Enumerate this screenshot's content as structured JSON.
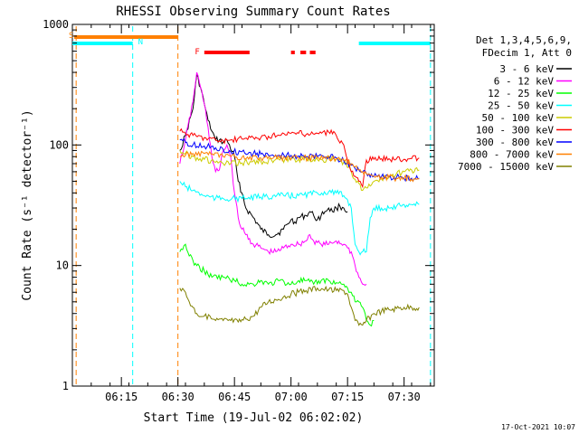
{
  "chart_data": {
    "type": "line",
    "title": "RHESSI Observing Summary Count Rates",
    "xlabel": "Start Time (19-Jul-02 06:02:02)",
    "ylabel": "Count Rate (s⁻¹ detector⁻¹)",
    "yscale": "log",
    "ylim": [
      1,
      1000
    ],
    "xlim_minutes": [
      0,
      96
    ],
    "y_ticks": [
      "1",
      "10",
      "100",
      "1000"
    ],
    "x_ticks": [
      {
        "minute": 13,
        "label": "06:15"
      },
      {
        "minute": 28,
        "label": "06:30"
      },
      {
        "minute": 43,
        "label": "06:45"
      },
      {
        "minute": 58,
        "label": "07:00"
      },
      {
        "minute": 73,
        "label": "07:15"
      },
      {
        "minute": 88,
        "label": "07:30"
      }
    ],
    "legend_header": [
      "Det 1,3,4,5,6,9,",
      "FDecim 1, Att 0"
    ],
    "legend_position": "right",
    "footer_date": "17-Oct-2021 10:07",
    "flags": [
      {
        "label": "S",
        "color": "#ff8000"
      },
      {
        "label": "N",
        "color": "#00ffff"
      },
      {
        "label": "F",
        "color": "#ff0000"
      }
    ],
    "flag_intervals": {
      "saa": [
        [
          0.5,
          28
        ]
      ],
      "night": [
        [
          0,
          16
        ],
        [
          76,
          95
        ]
      ],
      "flare": [
        [
          35,
          47
        ],
        [
          58,
          59
        ],
        [
          60.5,
          62
        ],
        [
          63,
          64.5
        ]
      ]
    },
    "vlines": [
      {
        "minute": 1,
        "color": "#ff8000"
      },
      {
        "minute": 16,
        "color": "#00ffff"
      },
      {
        "minute": 28,
        "color": "#ff8000"
      },
      {
        "minute": 95,
        "color": "#00ffff"
      }
    ],
    "series": [
      {
        "name": "3 - 6 keV",
        "color": "#000000",
        "points": [
          [
            28.5,
            90
          ],
          [
            30,
            120
          ],
          [
            32,
            200
          ],
          [
            33,
            380
          ],
          [
            34,
            300
          ],
          [
            35,
            220
          ],
          [
            36,
            160
          ],
          [
            37,
            130
          ],
          [
            38,
            110
          ],
          [
            39,
            110
          ],
          [
            40,
            105
          ],
          [
            41,
            110
          ],
          [
            43,
            80
          ],
          [
            44,
            50
          ],
          [
            45,
            40
          ],
          [
            46,
            30
          ],
          [
            48,
            25
          ],
          [
            50,
            20
          ],
          [
            52,
            18
          ],
          [
            54,
            18
          ],
          [
            56,
            20
          ],
          [
            57,
            22
          ],
          [
            58,
            24
          ],
          [
            59,
            23
          ],
          [
            60,
            25
          ],
          [
            62,
            26
          ],
          [
            63,
            28
          ],
          [
            64,
            26
          ],
          [
            65,
            24
          ],
          [
            66,
            26
          ],
          [
            67,
            28
          ],
          [
            68,
            30
          ],
          [
            69,
            28
          ],
          [
            70,
            30
          ],
          [
            71,
            31
          ],
          [
            72,
            30
          ],
          [
            73,
            28
          ]
        ]
      },
      {
        "name": "6 - 12 keV",
        "color": "#ff00ff",
        "points": [
          [
            28.5,
            70
          ],
          [
            30,
            110
          ],
          [
            32,
            230
          ],
          [
            33,
            400
          ],
          [
            34,
            300
          ],
          [
            35,
            220
          ],
          [
            36,
            140
          ],
          [
            37,
            80
          ],
          [
            38,
            60
          ],
          [
            39,
            62
          ],
          [
            40,
            90
          ],
          [
            41,
            100
          ],
          [
            42,
            80
          ],
          [
            43,
            40
          ],
          [
            44,
            25
          ],
          [
            45,
            20
          ],
          [
            46,
            18
          ],
          [
            48,
            15
          ],
          [
            50,
            14
          ],
          [
            52,
            13
          ],
          [
            54,
            13
          ],
          [
            56,
            14
          ],
          [
            58,
            15
          ],
          [
            60,
            15
          ],
          [
            62,
            16
          ],
          [
            63,
            18
          ],
          [
            64,
            16
          ],
          [
            66,
            15
          ],
          [
            68,
            15
          ],
          [
            70,
            16
          ],
          [
            72,
            15
          ],
          [
            73,
            14
          ],
          [
            74,
            13
          ],
          [
            75,
            10
          ],
          [
            76,
            8
          ],
          [
            77,
            7
          ],
          [
            78,
            7
          ]
        ]
      },
      {
        "name": "12 - 25 keV",
        "color": "#00ff00",
        "points": [
          [
            28.5,
            13
          ],
          [
            30,
            15
          ],
          [
            31,
            12
          ],
          [
            32,
            11
          ],
          [
            33,
            10
          ],
          [
            35,
            9
          ],
          [
            37,
            8
          ],
          [
            40,
            8
          ],
          [
            43,
            7.5
          ],
          [
            45,
            7
          ],
          [
            48,
            7
          ],
          [
            50,
            7.5
          ],
          [
            52,
            7
          ],
          [
            55,
            7.5
          ],
          [
            58,
            7
          ],
          [
            60,
            7.5
          ],
          [
            62,
            7.5
          ],
          [
            64,
            7
          ],
          [
            66,
            7.5
          ],
          [
            68,
            7.5
          ],
          [
            70,
            7.2
          ],
          [
            72,
            7
          ],
          [
            73,
            6.5
          ],
          [
            74,
            6
          ],
          [
            75,
            5
          ],
          [
            76,
            5
          ],
          [
            77,
            4.5
          ],
          [
            78,
            3.5
          ],
          [
            79,
            3.2
          ],
          [
            80,
            3.5
          ]
        ]
      },
      {
        "name": "25 - 50 keV",
        "color": "#00ffff",
        "points": [
          [
            28.5,
            50
          ],
          [
            30,
            45
          ],
          [
            32,
            42
          ],
          [
            35,
            38
          ],
          [
            38,
            36
          ],
          [
            40,
            36
          ],
          [
            45,
            36
          ],
          [
            50,
            37
          ],
          [
            55,
            38
          ],
          [
            60,
            38
          ],
          [
            65,
            40
          ],
          [
            68,
            41
          ],
          [
            70,
            40
          ],
          [
            72,
            38
          ],
          [
            73,
            35
          ],
          [
            74,
            30
          ],
          [
            75,
            15
          ],
          [
            76,
            13
          ],
          [
            77,
            13
          ],
          [
            78,
            13
          ],
          [
            79,
            25
          ],
          [
            80,
            30
          ],
          [
            82,
            30
          ],
          [
            84,
            30
          ],
          [
            86,
            31
          ],
          [
            88,
            32
          ],
          [
            90,
            32
          ],
          [
            92,
            32
          ]
        ]
      },
      {
        "name": "50 - 100 keV",
        "color": "#cccc00",
        "points": [
          [
            28.5,
            90
          ],
          [
            30,
            85
          ],
          [
            32,
            80
          ],
          [
            35,
            76
          ],
          [
            38,
            72
          ],
          [
            40,
            70
          ],
          [
            42,
            70
          ],
          [
            45,
            71
          ],
          [
            50,
            73
          ],
          [
            55,
            75
          ],
          [
            60,
            76
          ],
          [
            65,
            76
          ],
          [
            70,
            76
          ],
          [
            72,
            72
          ],
          [
            74,
            60
          ],
          [
            75,
            52
          ],
          [
            76,
            48
          ],
          [
            77,
            42
          ],
          [
            78,
            44
          ],
          [
            80,
            50
          ],
          [
            82,
            52
          ],
          [
            84,
            55
          ],
          [
            86,
            58
          ],
          [
            88,
            60
          ],
          [
            90,
            62
          ],
          [
            92,
            62
          ]
        ]
      },
      {
        "name": "100 - 300 keV",
        "color": "#ff0000",
        "points": [
          [
            28.5,
            130
          ],
          [
            30,
            125
          ],
          [
            32,
            120
          ],
          [
            35,
            115
          ],
          [
            38,
            110
          ],
          [
            40,
            108
          ],
          [
            42,
            110
          ],
          [
            45,
            112
          ],
          [
            48,
            115
          ],
          [
            50,
            115
          ],
          [
            52,
            118
          ],
          [
            55,
            120
          ],
          [
            58,
            125
          ],
          [
            60,
            125
          ],
          [
            62,
            122
          ],
          [
            65,
            125
          ],
          [
            68,
            128
          ],
          [
            70,
            120
          ],
          [
            72,
            100
          ],
          [
            73,
            75
          ],
          [
            74,
            60
          ],
          [
            75,
            55
          ],
          [
            76,
            50
          ],
          [
            77,
            45
          ],
          [
            78,
            75
          ],
          [
            80,
            76
          ],
          [
            82,
            77
          ],
          [
            84,
            77
          ],
          [
            86,
            77
          ],
          [
            88,
            76
          ],
          [
            90,
            77
          ],
          [
            92,
            78
          ]
        ]
      },
      {
        "name": "300 - 800 keV",
        "color": "#0000ff",
        "points": [
          [
            28.5,
            110
          ],
          [
            30,
            105
          ],
          [
            32,
            100
          ],
          [
            35,
            98
          ],
          [
            38,
            95
          ],
          [
            40,
            92
          ],
          [
            42,
            88
          ],
          [
            45,
            88
          ],
          [
            48,
            85
          ],
          [
            50,
            84
          ],
          [
            52,
            82
          ],
          [
            55,
            82
          ],
          [
            58,
            82
          ],
          [
            60,
            81
          ],
          [
            62,
            80
          ],
          [
            65,
            80
          ],
          [
            68,
            80
          ],
          [
            70,
            78
          ],
          [
            72,
            74
          ],
          [
            74,
            68
          ],
          [
            75,
            64
          ],
          [
            76,
            62
          ],
          [
            78,
            58
          ],
          [
            80,
            55
          ],
          [
            82,
            55
          ],
          [
            84,
            54
          ],
          [
            86,
            54
          ],
          [
            88,
            53
          ],
          [
            90,
            53
          ],
          [
            92,
            53
          ]
        ]
      },
      {
        "name": "800 - 7000 keV",
        "color": "#ff8000",
        "points": [
          [
            28.5,
            80
          ],
          [
            30,
            82
          ],
          [
            32,
            85
          ],
          [
            35,
            85
          ],
          [
            40,
            80
          ],
          [
            45,
            79
          ],
          [
            50,
            78
          ],
          [
            55,
            78
          ],
          [
            60,
            78
          ],
          [
            65,
            78
          ],
          [
            70,
            77
          ],
          [
            72,
            75
          ],
          [
            74,
            70
          ],
          [
            76,
            62
          ],
          [
            78,
            58
          ],
          [
            80,
            55
          ],
          [
            82,
            54
          ],
          [
            84,
            54
          ],
          [
            86,
            53
          ],
          [
            88,
            53
          ],
          [
            90,
            52
          ],
          [
            92,
            52
          ]
        ]
      },
      {
        "name": "7000 - 15000 keV",
        "color": "#808000",
        "points": [
          [
            28.5,
            6.5
          ],
          [
            30,
            6
          ],
          [
            31,
            5
          ],
          [
            32,
            4.5
          ],
          [
            33,
            4
          ],
          [
            35,
            3.8
          ],
          [
            38,
            3.5
          ],
          [
            40,
            3.5
          ],
          [
            42,
            3.5
          ],
          [
            44,
            3.4
          ],
          [
            46,
            3.6
          ],
          [
            48,
            3.8
          ],
          [
            50,
            4.5
          ],
          [
            52,
            5
          ],
          [
            54,
            5.2
          ],
          [
            56,
            5.5
          ],
          [
            58,
            5.8
          ],
          [
            60,
            6
          ],
          [
            62,
            6.2
          ],
          [
            65,
            6.5
          ],
          [
            68,
            6.3
          ],
          [
            70,
            6.2
          ],
          [
            72,
            6.2
          ],
          [
            73,
            5.8
          ],
          [
            74,
            4.5
          ],
          [
            75,
            3.5
          ],
          [
            76,
            3.2
          ],
          [
            77,
            3.2
          ],
          [
            78,
            3.5
          ],
          [
            80,
            4
          ],
          [
            82,
            4.2
          ],
          [
            84,
            4.3
          ],
          [
            86,
            4.4
          ],
          [
            88,
            4.5
          ],
          [
            90,
            4.5
          ],
          [
            92,
            4.5
          ]
        ]
      }
    ]
  }
}
